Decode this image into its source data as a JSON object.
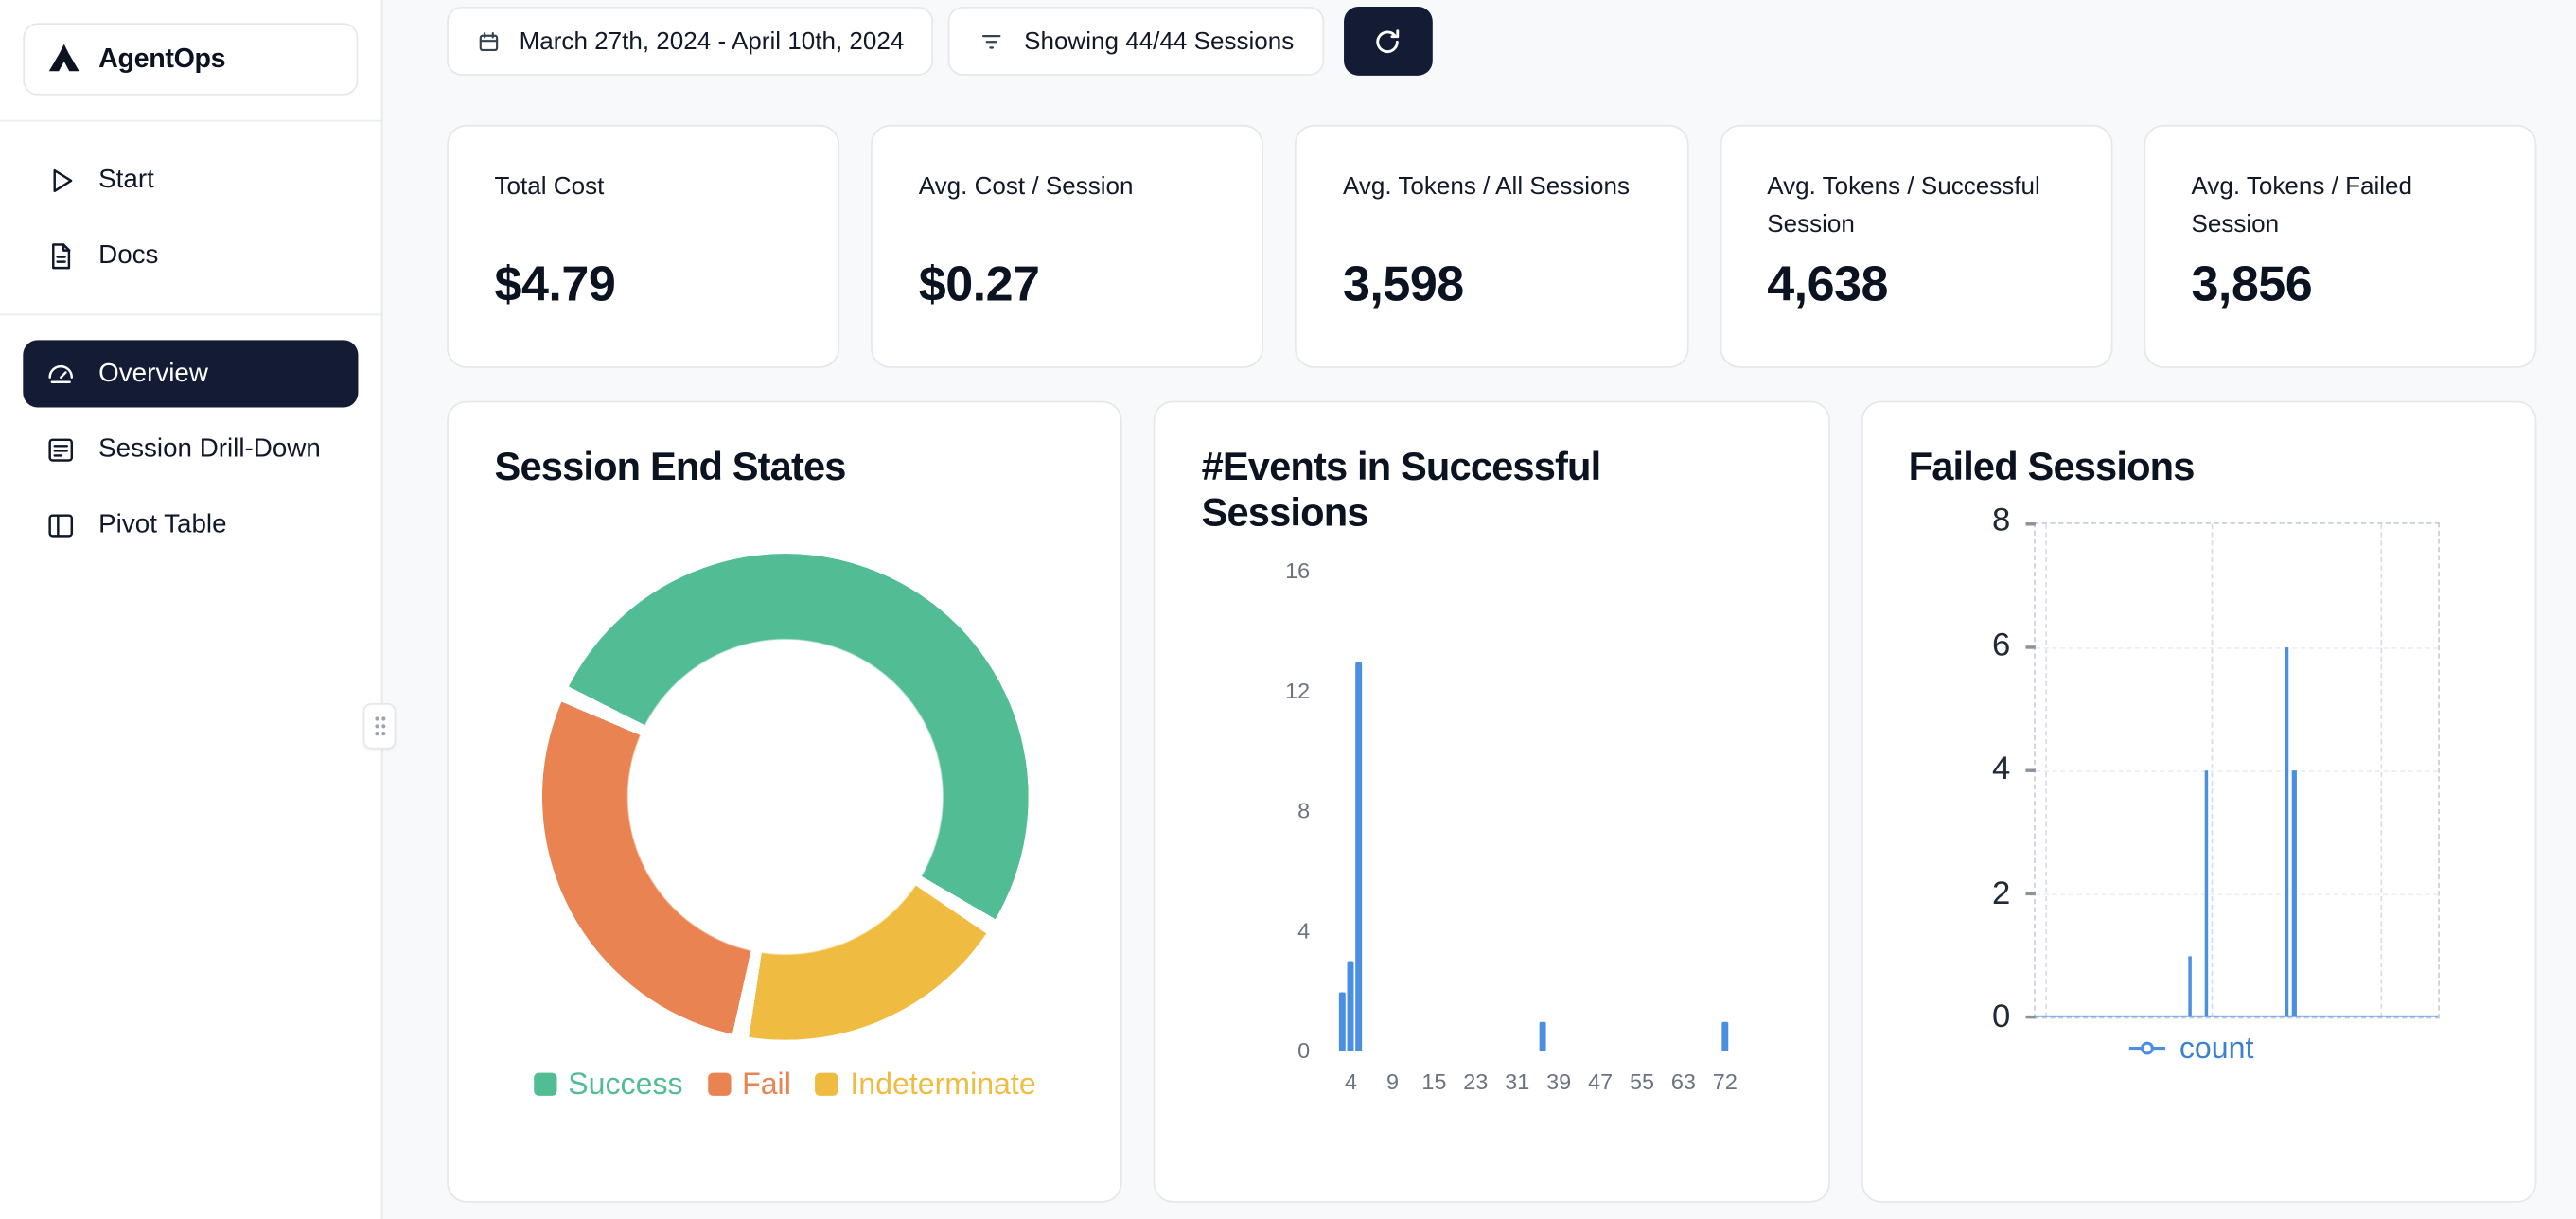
{
  "app": {
    "name": "AgentOps"
  },
  "colors": {
    "accent_navy": "#131b35",
    "card_border": "#e5e7eb",
    "chart_blue": "#4a8fe2",
    "success_green": "#52bd95",
    "fail_orange": "#e98351",
    "indeterminate_yellow": "#efbc41"
  },
  "sidebar": {
    "links": [
      {
        "label": "Start",
        "icon": "play-icon"
      },
      {
        "label": "Docs",
        "icon": "docs-icon"
      }
    ],
    "nav": [
      {
        "label": "Overview",
        "icon": "gauge-icon",
        "active": true
      },
      {
        "label": "Session Drill-Down",
        "icon": "session-list-icon",
        "active": false
      },
      {
        "label": "Pivot Table",
        "icon": "pivot-table-icon",
        "active": false
      }
    ]
  },
  "toolbar": {
    "date_range": "March 27th, 2024 - April 10th, 2024",
    "sessions_filter": "Showing 44/44 Sessions"
  },
  "stats": [
    {
      "label": "Total Cost",
      "value": "$4.79"
    },
    {
      "label": "Avg. Cost / Session",
      "value": "$0.27"
    },
    {
      "label": "Avg. Tokens / All Sessions",
      "value": "3,598"
    },
    {
      "label": "Avg. Tokens / Successful Session",
      "value": "4,638"
    },
    {
      "label": "Avg. Tokens / Failed Session",
      "value": "3,856"
    }
  ],
  "chart_data": [
    {
      "type": "pie",
      "title": "Session End States",
      "labels": [
        "Success",
        "Fail",
        "Indeterminate"
      ],
      "values": [
        52,
        29,
        19
      ],
      "colors": [
        "#52bd95",
        "#e98351",
        "#efbc41"
      ],
      "draw_order": [
        0,
        2,
        1
      ],
      "start_angle_deg": 295,
      "legend_position": "bottom"
    },
    {
      "type": "bar",
      "title": "#Events in Successful Sessions",
      "x_ticks": [
        4,
        9,
        15,
        23,
        31,
        39,
        47,
        55,
        63,
        72
      ],
      "y_ticks": [
        0,
        4,
        8,
        12,
        16
      ],
      "y_max": 16,
      "bars": [
        {
          "x": 3,
          "count": 2
        },
        {
          "x": 4,
          "count": 3
        },
        {
          "x": 5,
          "count": 13
        },
        {
          "x": 36,
          "count": 1
        },
        {
          "x": 72,
          "count": 1
        }
      ],
      "bar_color": "#4a8fe2",
      "grid": "off"
    },
    {
      "type": "line",
      "title": "Failed Sessions",
      "series_name": "count",
      "y_ticks": [
        0,
        2,
        4,
        6,
        8
      ],
      "y_max": 8,
      "points": [
        {
          "x_percent": 38,
          "count": 1
        },
        {
          "x_percent": 42,
          "count": 4
        },
        {
          "x_percent": 62,
          "count": 6
        },
        {
          "x_percent": 64,
          "count": 4
        }
      ],
      "baseline": 0,
      "line_color": "#4a8fe2",
      "grid": "dashed",
      "legend_position": "bottom"
    }
  ]
}
